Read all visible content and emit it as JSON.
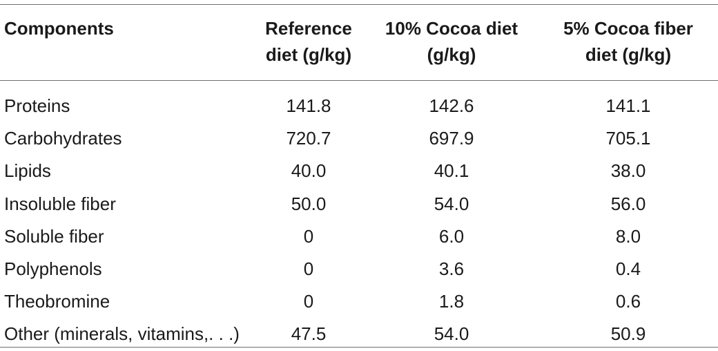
{
  "table": {
    "headers": [
      {
        "lines": [
          "Components"
        ]
      },
      {
        "lines": [
          "Reference",
          "diet (g/kg)"
        ]
      },
      {
        "lines": [
          "10% Cocoa diet",
          "(g/kg)"
        ]
      },
      {
        "lines": [
          "5% Cocoa fiber",
          "diet (g/kg)"
        ]
      }
    ],
    "rows": [
      [
        "Proteins",
        "141.8",
        "142.6",
        "141.1"
      ],
      [
        "Carbohydrates",
        "720.7",
        "697.9",
        "705.1"
      ],
      [
        "Lipids",
        "40.0",
        "40.1",
        "38.0"
      ],
      [
        "Insoluble fiber",
        "50.0",
        "54.0",
        "56.0"
      ],
      [
        "Soluble fiber",
        "0",
        "6.0",
        "8.0"
      ],
      [
        "Polyphenols",
        "0",
        "3.6",
        "0.4"
      ],
      [
        "Theobromine",
        "0",
        "1.8",
        "0.6"
      ],
      [
        "Other (minerals, vitamins,. . .)",
        "47.5",
        "54.0",
        "50.9"
      ]
    ]
  }
}
